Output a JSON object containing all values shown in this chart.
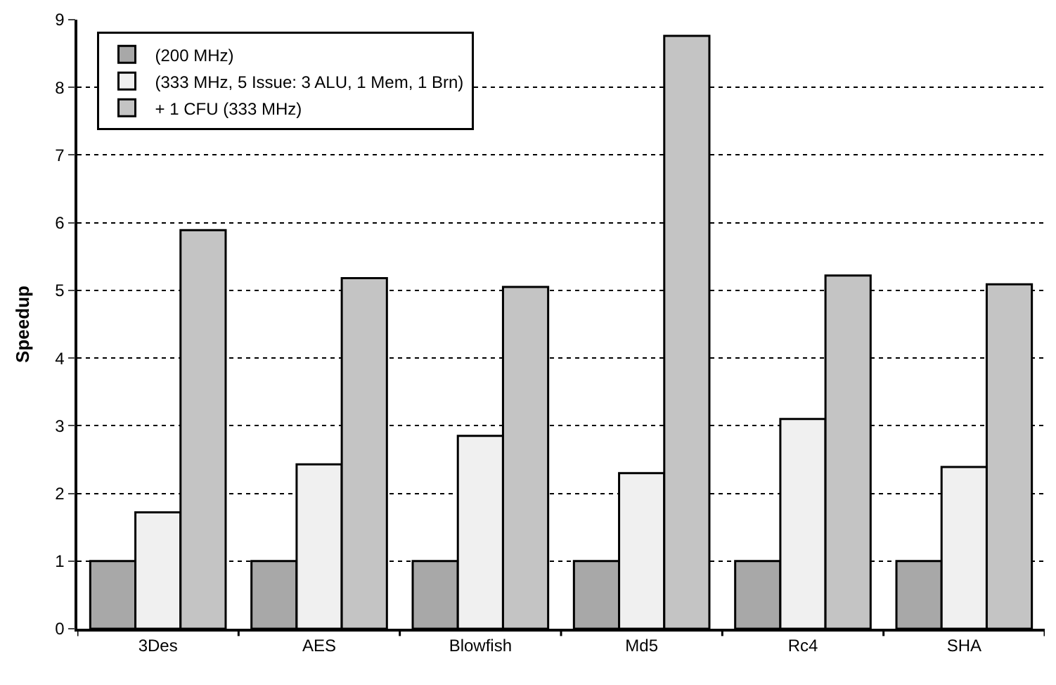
{
  "chart_data": {
    "type": "bar",
    "ylabel": "Speedup",
    "categories": [
      "3Des",
      "AES",
      "Blowfish",
      "Md5",
      "Rc4",
      "SHA"
    ],
    "series": [
      {
        "name": "(200 MHz)",
        "color": "#a8a8a8",
        "values": [
          1,
          1,
          1,
          1,
          1,
          1
        ]
      },
      {
        "name": "(333 MHz, 5 Issue: 3 ALU, 1 Mem, 1 Brn)",
        "color": "#f0f0f0",
        "values": [
          1.72,
          2.43,
          2.85,
          2.3,
          3.1,
          2.39
        ]
      },
      {
        "name": "+ 1 CFU (333 MHz)",
        "color": "#c4c4c4",
        "values": [
          5.89,
          5.18,
          5.05,
          8.76,
          5.22,
          5.09
        ]
      }
    ],
    "ylim": [
      0,
      9
    ],
    "yticks": [
      0,
      1,
      2,
      3,
      4,
      5,
      6,
      7,
      8,
      9
    ],
    "grid": "y",
    "legend": "top left"
  }
}
